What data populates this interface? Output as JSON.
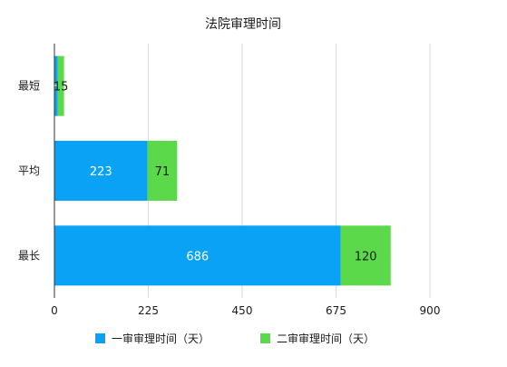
{
  "chart_data": {
    "type": "bar",
    "orientation": "horizontal",
    "stacked": true,
    "title": "法院审理时间",
    "categories": [
      "最短",
      "平均",
      "最长"
    ],
    "series": [
      {
        "name": "一审审理时间（天）",
        "values": [
          8,
          223,
          686
        ],
        "color": "#0aa2f5",
        "label_color": "#ffffff"
      },
      {
        "name": "二审审理时间（天）",
        "values": [
          15,
          71,
          120
        ],
        "color": "#5bd94a",
        "label_color": "#1a1a1a"
      }
    ],
    "xlim": [
      0,
      900
    ],
    "xticks": [
      "0",
      "225",
      "450",
      "675",
      "900"
    ],
    "grid": true,
    "legend_position": "bottom"
  }
}
